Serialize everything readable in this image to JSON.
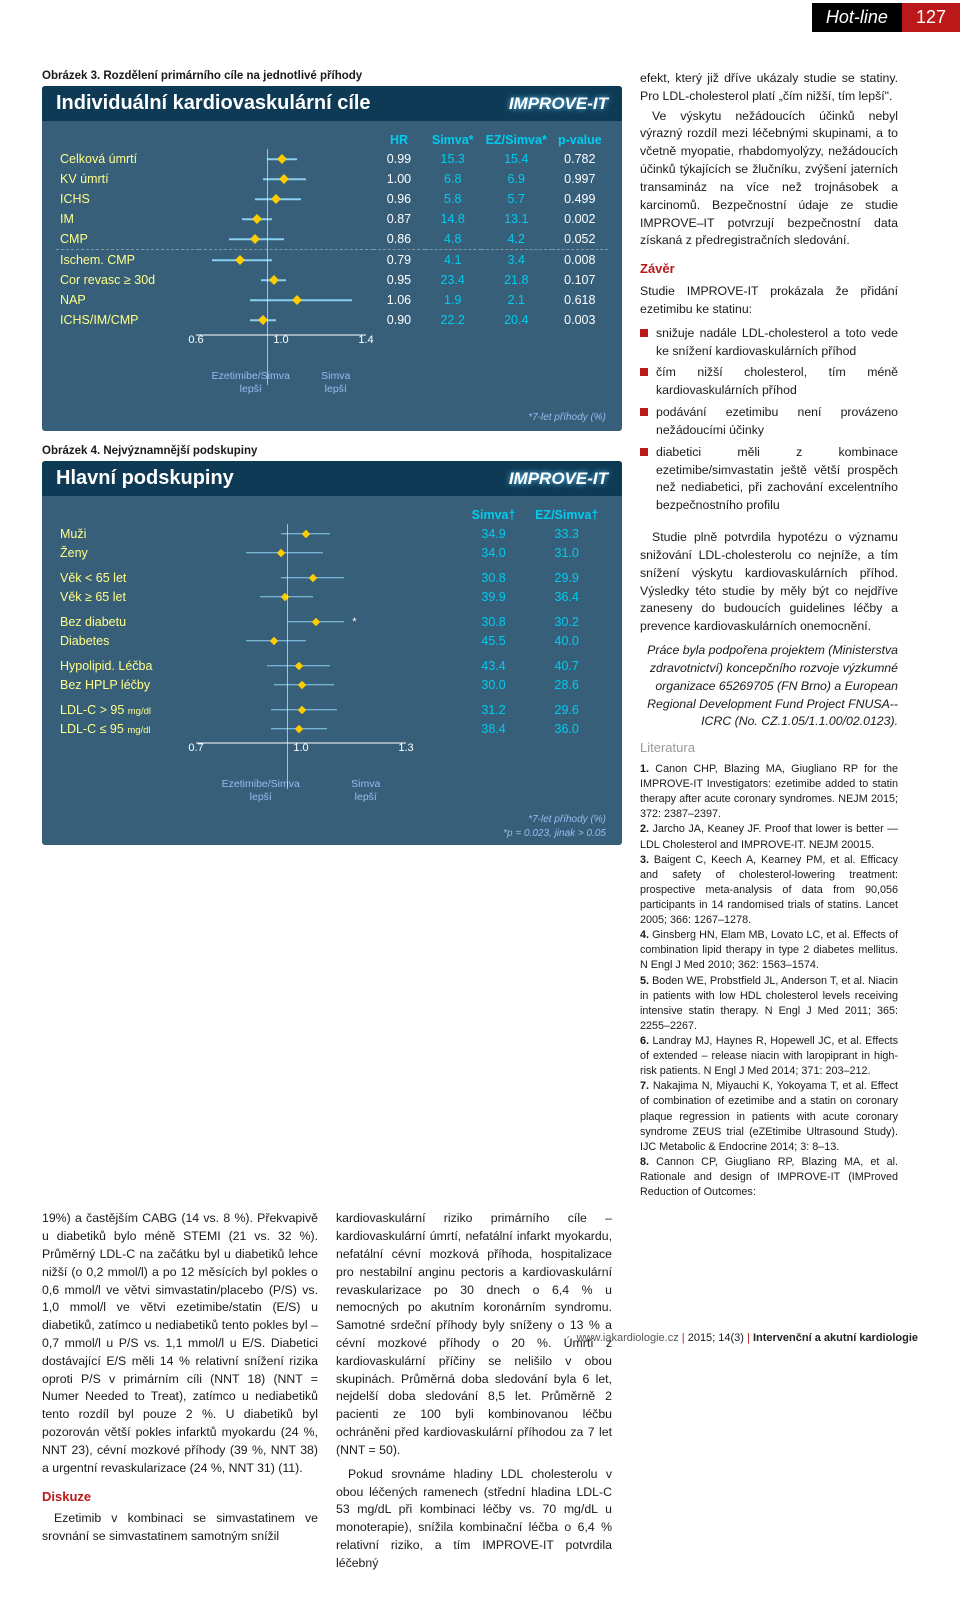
{
  "header": {
    "section": "Hot-line",
    "page": "127"
  },
  "fig3": {
    "caption_label": "Obrázek 3.",
    "caption": "Rozdělení primárního cíle na jednotlivé příhody",
    "title": "Individuální kardiovaskulární cíle",
    "logo": "IMPROVE-IT",
    "columns": {
      "hr": "HR",
      "simva": "Simva*",
      "ezs": "EZ/Simva*",
      "p": "p-value"
    },
    "rows": [
      {
        "label": "Celková úmrtí",
        "hr": "0.99",
        "sim": "15.3",
        "ezs": "15.4",
        "p": "0.782",
        "x": 0.99,
        "lo": 0.92,
        "hi": 1.06
      },
      {
        "label": "KV úmrtí",
        "hr": "1.00",
        "sim": "6.8",
        "ezs": "6.9",
        "p": "0.997",
        "x": 1.0,
        "lo": 0.9,
        "hi": 1.1
      },
      {
        "label": "ICHS",
        "hr": "0.96",
        "sim": "5.8",
        "ezs": "5.7",
        "p": "0.499",
        "x": 0.96,
        "lo": 0.86,
        "hi": 1.08
      },
      {
        "label": "IM",
        "hr": "0.87",
        "sim": "14.8",
        "ezs": "13.1",
        "p": "0.002",
        "x": 0.87,
        "lo": 0.8,
        "hi": 0.94
      },
      {
        "label": "CMP",
        "hr": "0.86",
        "sim": "4.8",
        "ezs": "4.2",
        "p": "0.052",
        "x": 0.86,
        "lo": 0.74,
        "hi": 1.0
      },
      {
        "label": "Ischem. CMP",
        "hr": "0.79",
        "sim": "4.1",
        "ezs": "3.4",
        "p": "0.008",
        "x": 0.79,
        "lo": 0.66,
        "hi": 0.94
      },
      {
        "label": "Cor revasc ≥ 30d",
        "hr": "0.95",
        "sim": "23.4",
        "ezs": "21.8",
        "p": "0.107",
        "x": 0.95,
        "lo": 0.89,
        "hi": 1.01
      },
      {
        "label": "NAP",
        "hr": "1.06",
        "sim": "1.9",
        "ezs": "2.1",
        "p": "0.618",
        "x": 1.06,
        "lo": 0.84,
        "hi": 1.32
      },
      {
        "label": "ICHS/IM/CMP",
        "hr": "0.90",
        "sim": "22.2",
        "ezs": "20.4",
        "p": "0.003",
        "x": 0.9,
        "lo": 0.84,
        "hi": 0.96
      }
    ],
    "xmin": 0.6,
    "xmid": 1.0,
    "xmax": 1.4,
    "axis": {
      "t1": "0.6",
      "t2": "1.0",
      "t3": "1.4"
    },
    "legend_left": "Ezetimibe/Simva\nlepší",
    "legend_right": "Simva\nlepší",
    "footnote": "*7-let příhody (%)"
  },
  "fig4": {
    "caption_label": "Obrázek 4.",
    "caption": "Nejvýznamnější podskupiny",
    "title": "Hlavní podskupiny",
    "logo": "IMPROVE-IT",
    "columns": {
      "simva": "Simva†",
      "ezs": "EZ/Simva†"
    },
    "rows": [
      {
        "label": "Muži",
        "sim": "34.9",
        "ezs": "33.3",
        "x": 0.95,
        "lo": 0.88,
        "hi": 1.02
      },
      {
        "label": "Ženy",
        "sim": "34.0",
        "ezs": "31.0",
        "x": 0.88,
        "lo": 0.78,
        "hi": 1.0
      },
      {
        "label": "Věk < 65 let",
        "sim": "30.8",
        "ezs": "29.9",
        "x": 0.97,
        "lo": 0.88,
        "hi": 1.06
      },
      {
        "label": "Věk ≥ 65 let",
        "sim": "39.9",
        "ezs": "36.4",
        "x": 0.89,
        "lo": 0.82,
        "hi": 0.97
      },
      {
        "label": "Bez diabetu",
        "sim": "30.8",
        "ezs": "30.2",
        "x": 0.98,
        "lo": 0.9,
        "hi": 1.06,
        "star": true
      },
      {
        "label": "Diabetes",
        "sim": "45.5",
        "ezs": "40.0",
        "x": 0.86,
        "lo": 0.78,
        "hi": 0.95
      },
      {
        "label": "Hypolipid. Léčba",
        "sim": "43.4",
        "ezs": "40.7",
        "x": 0.93,
        "lo": 0.84,
        "hi": 1.02
      },
      {
        "label": "Bez HPLP léčby",
        "sim": "30.0",
        "ezs": "28.6",
        "x": 0.94,
        "lo": 0.86,
        "hi": 1.03
      },
      {
        "label": "LDL-C > 95",
        "sub": "mg/dl",
        "sim": "31.2",
        "ezs": "29.6",
        "x": 0.94,
        "lo": 0.85,
        "hi": 1.04
      },
      {
        "label": "LDL-C ≤ 95",
        "sub": "mg/dl",
        "sim": "38.4",
        "ezs": "36.0",
        "x": 0.93,
        "lo": 0.85,
        "hi": 1.01
      }
    ],
    "xmin": 0.7,
    "xmid": 1.0,
    "xmax": 1.3,
    "axis": {
      "t1": "0.7",
      "t2": "1.0",
      "t3": "1.3"
    },
    "legend_left": "Ezetimibe/Simva\nlepší",
    "legend_right": "Simva\nlepší",
    "footnote1": "*7-let příhody (%)",
    "footnote2": "*p = 0.023, jinak > 0.05"
  },
  "right_col": {
    "p1": "efekt, který již dříve ukázaly studie se statiny. Pro LDL-cholesterol platí „čím nižší, tím lepší\".",
    "p2": "Ve výskytu nežádoucích účinků nebyl výrazný rozdíl mezi léčebnými skupinami, a to včetně myopatie, rhabdomyolýzy, nežádoucích účinků týkajících se žlučníku, zvýšení jaterních transamináz na více než trojnásobek a karcinomů. Bezpečnostní údaje ze studie IMPROVE–IT potvrzují bezpečnostní data získaná z předregistračních sledování.",
    "zaver": "Závěr",
    "p3": "Studie IMPROVE-IT prokázala že přidání ezetimibu ke statinu:",
    "bullets": [
      "snižuje nadále LDL-cholesterol a toto vede ke snížení kardiovaskulárních příhod",
      "čím nižší cholesterol, tím méně kardiovaskulárních příhod",
      "podávání ezetimibu není provázeno nežádoucími účinky",
      "diabetici měli z kombinace ezetimibe/simvastatin ještě větší prospěch než nediabetici, při zachování excelentního bezpečnostního profilu"
    ],
    "p4": "Studie plně potvrdila hypotézu o významu snižování LDL-cholesterolu co nejníže, a tím snížení výskytu kardiovaskulárních příhod. Výsledky této studie by měly být co nejdříve zaneseny do budoucích guidelines léčby a prevence kardiovaskulárních onemocnění.",
    "p5": "Práce byla podpořena projektem (Ministerstva zdravotnictví) koncepčního rozvoje výzkumné organizace 65269705 (FN Brno) a European Regional Development Fund Project FNUSA--ICRC (No. CZ.1.05/1.1.00/02.0123).",
    "lit_title": "Literatura",
    "refs": [
      "Canon CHP, Blazing MA, Giugliano RP for the IMPROVE-IT Investigators: ezetimibe added to statin therapy after acute coronary syndromes. NEJM 2015; 372: 2387–2397.",
      "Jarcho JA, Keaney JF. Proof that lower is better — LDL Cholesterol and IMPROVE-IT. NEJM 20015.",
      "Baigent C, Keech A, Kearney PM, et al. Efficacy and safety of cholesterol-lowering treatment: prospective meta-analysis of data from 90,056 participants in 14 randomised trials of statins. Lancet 2005; 366: 1267–1278.",
      "Ginsberg HN, Elam MB, Lovato LC, et al. Effects of combination lipid therapy in type 2 diabetes mellitus. N Engl J Med 2010; 362: 1563–1574.",
      "Boden WE, Probstfield JL, Anderson T, et al. Niacin in patients with low HDL cholesterol levels receiving intensive statin therapy. N Engl J Med 2011; 365: 2255–2267.",
      "Landray MJ, Haynes R, Hopewell JC, et al. Effects of extended – release niacin with laropiprant in high-risk patients. N Engl J Med 2014; 371: 203–212.",
      "Nakajima N, Miyauchi K, Yokoyama T, et al. Effect of combination of ezetimibe and a statin on coronary plaque regression in patients with acute coronary syndrome ZEUS trial (eZEtimibe Ultrasound Study). IJC Metabolic & Endocrine 2014; 3: 8–13.",
      "Cannon CP, Giugliano RP, Blazing MA, et al. Rationale and design of IMPROVE-IT (IMProved Reduction of Outcomes:"
    ]
  },
  "bot_left": {
    "p1": "19%) a častějším CABG (14 vs. 8 %). Překvapivě u diabetiků bylo méně STEMI (21 vs. 32 %). Průměrný LDL-C na začátku byl u diabetiků lehce nižší (o 0,2 mmol/l) a po 12 měsících byl pokles o 0,6 mmol/l ve větvi simvastatin/placebo (P/S) vs. 1,0 mmol/l ve větvi ezetimibe/statin (E/S) u diabetiků, zatímco u nediabetiků tento pokles byl – 0,7 mmol/l u P/S vs. 1,1 mmol/l u E/S. Diabetici dostávající E/S měli 14 % relativní snížení rizika oproti P/S v primárním cíli (NNT 18) (NNT = Numer Needed to Treat), zatímco u nediabetiků tento rozdíl byl pouze 2 %. U diabetiků byl pozorován větší pokles infarktů myokardu (24 %, NNT 23), cévní mozkové příhody (39 %, NNT 38) a urgentní revaskularizace (24 %, NNT 31) (11).",
    "diskuze": "Diskuze",
    "p2": "Ezetimib v kombinaci se simvastatinem ve srovnání se simvastatinem samotným snížil"
  },
  "bot_mid": {
    "p1": "kardiovaskulární riziko primárního cíle – kardiovaskulární úmrtí, nefatální infarkt myokardu, nefatální cévní mozková příhoda, hospitalizace pro nestabilní anginu pectoris a kardiovaskulární revaskularizace po 30 dnech o 6,4 % u nemocných po akutním koronárním syndromu. Samotné srdeční příhody byly sníženy o 13 % a cévní mozkové příhody o 20 %. Úmrtí z kardiovaskulární příčiny se nelišilo v obou skupinách. Průměrná doba sledování byla 6 let, nejdelší doba sledování 8,5 let. Průměrně 2 pacienti ze 100 byli kombinovanou léčbu ochráněni před kardiovaskulární příhodou za 7 let (NNT = 50).",
    "p2": "Pokud srovnáme hladiny LDL cholesterolu v obou léčených ramenech (střední hladina LDL-C 53 mg/dL při kombinaci léčby vs. 70 mg/dL u monoterapie), snížila kombinační léčba o 6,4 % relativní riziko, a tím IMPROVE-IT potvrdila léčebný"
  },
  "footer": {
    "site": "www.iakardiologie.cz",
    "issue": "2015; 14(3)",
    "journal": "Intervenční a akutní kardiologie"
  }
}
